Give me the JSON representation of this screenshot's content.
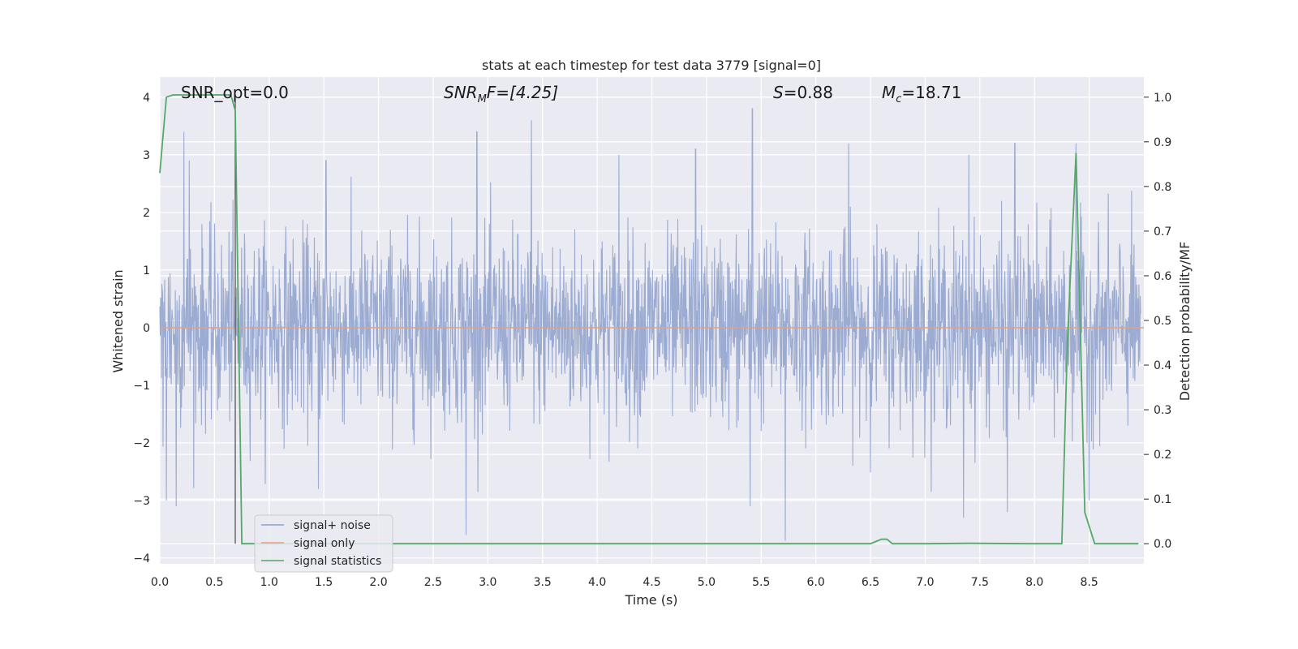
{
  "chart_data": {
    "type": "line",
    "title": "stats at each timestep for test data 3779 [signal=0]",
    "xlabel": "Time (s)",
    "ylabel": "Whitened strain",
    "ylabel_right": "Detection probability/MF",
    "xlim": [
      0.0,
      9.0
    ],
    "ylim": [
      -4.1,
      4.35
    ],
    "ylim_right": [
      -0.045,
      1.045
    ],
    "x_ticks": [
      "0.0",
      "0.5",
      "1.0",
      "1.5",
      "2.0",
      "2.5",
      "3.0",
      "3.5",
      "4.0",
      "4.5",
      "5.0",
      "5.5",
      "6.0",
      "6.5",
      "7.0",
      "7.5",
      "8.0",
      "8.5"
    ],
    "y_ticks": [
      "4",
      "3",
      "2",
      "1",
      "0",
      "−1",
      "−2",
      "−3",
      "−4"
    ],
    "y_ticks_right": [
      "1.0",
      "0.9",
      "0.8",
      "0.7",
      "0.6",
      "0.5",
      "0.4",
      "0.3",
      "0.2",
      "0.1",
      "0.0"
    ],
    "grid": true,
    "legend_position": "lower-left",
    "annotations": {
      "snr_opt": "SNR_opt=0.0",
      "snr_mf_base": "SNR",
      "snr_mf_sub": "M",
      "snr_mf_rest": "F=[4.25]",
      "s_italic": "S",
      "s_rest": "=0.88",
      "mc_base": "M",
      "mc_sub": "c",
      "mc_rest": "=18.71"
    },
    "marker_line_x": 0.69,
    "series": [
      {
        "name": "signal+ noise",
        "color": "#8da0cb",
        "noise_std": 0.8,
        "peaks": [
          {
            "x": 0.22,
            "y": 3.4
          },
          {
            "x": 0.27,
            "y": 2.9
          },
          {
            "x": 0.06,
            "y": -3.0
          },
          {
            "x": 0.15,
            "y": -3.1
          },
          {
            "x": 1.52,
            "y": 2.9
          },
          {
            "x": 1.45,
            "y": -2.8
          },
          {
            "x": 2.9,
            "y": 3.4
          },
          {
            "x": 3.4,
            "y": 3.6
          },
          {
            "x": 2.8,
            "y": -3.6
          },
          {
            "x": 4.2,
            "y": 3.0
          },
          {
            "x": 4.9,
            "y": 3.1
          },
          {
            "x": 5.42,
            "y": 3.8
          },
          {
            "x": 5.4,
            "y": -3.1
          },
          {
            "x": 5.72,
            "y": -3.7
          },
          {
            "x": 6.3,
            "y": 3.2
          },
          {
            "x": 7.4,
            "y": 3.0
          },
          {
            "x": 7.82,
            "y": 3.2
          },
          {
            "x": 7.35,
            "y": -3.3
          },
          {
            "x": 7.75,
            "y": -3.2
          },
          {
            "x": 8.38,
            "y": 3.2
          },
          {
            "x": 8.5,
            "y": -3.0
          }
        ]
      },
      {
        "name": "signal only",
        "color": "#e5a07e",
        "x": [
          0.0,
          9.0
        ],
        "y": [
          0.0,
          0.0
        ]
      },
      {
        "name": "signal statistics",
        "color": "#55a868",
        "axis": "right",
        "x": [
          0.0,
          0.06,
          0.12,
          0.2,
          0.3,
          0.4,
          0.5,
          0.6,
          0.65,
          0.69,
          0.75,
          0.8,
          1.0,
          2.0,
          3.0,
          4.0,
          5.0,
          6.0,
          6.5,
          6.6,
          6.65,
          6.7,
          7.0,
          7.4,
          8.0,
          8.25,
          8.3,
          8.38,
          8.46,
          8.55,
          8.7,
          8.95
        ],
        "y": [
          0.83,
          1.0,
          1.005,
          1.005,
          1.005,
          1.005,
          1.005,
          1.005,
          1.005,
          0.97,
          0.0,
          0.0,
          0.0,
          0.0,
          0.0,
          0.0,
          0.0,
          0.0,
          0.0,
          0.01,
          0.01,
          0.0,
          0.0,
          0.001,
          0.0,
          0.0,
          0.45,
          0.875,
          0.07,
          0.0,
          0.0,
          0.0
        ]
      }
    ]
  }
}
